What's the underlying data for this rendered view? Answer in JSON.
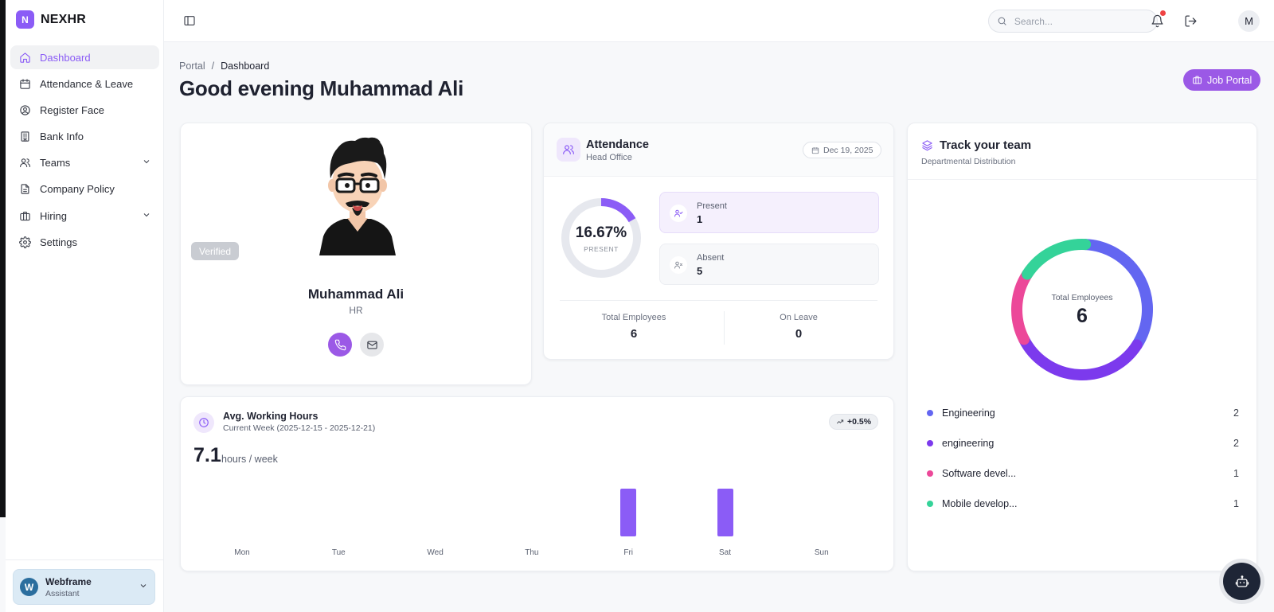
{
  "brand": {
    "logo_letter": "N",
    "name": "NEXHR"
  },
  "sidebar": {
    "items": [
      {
        "label": "Dashboard",
        "icon": "home-icon",
        "active": true
      },
      {
        "label": "Attendance & Leave",
        "icon": "calendar-icon"
      },
      {
        "label": "Register Face",
        "icon": "user-circle-icon"
      },
      {
        "label": "Bank Info",
        "icon": "building-icon"
      },
      {
        "label": "Teams",
        "icon": "users-icon",
        "expandable": true
      },
      {
        "label": "Company Policy",
        "icon": "document-icon"
      },
      {
        "label": "Hiring",
        "icon": "briefcase-icon",
        "expandable": true
      },
      {
        "label": "Settings",
        "icon": "gear-icon"
      }
    ],
    "user": {
      "initial": "W",
      "name": "Webframe",
      "role": "Assistant"
    }
  },
  "header": {
    "search_placeholder": "Search...",
    "avatar_initial": "M"
  },
  "page": {
    "breadcrumb": {
      "root": "Portal",
      "separator": "/",
      "current": "Dashboard"
    },
    "title": "Good evening Muhammad Ali",
    "job_portal_label": "Job Portal"
  },
  "profile": {
    "verified_label": "Verified",
    "name": "Muhammad Ali",
    "role": "HR"
  },
  "attendance": {
    "title": "Attendance",
    "location": "Head Office",
    "date": "Dec 19, 2025",
    "percent_label": "16.67%",
    "percent_value": 16.67,
    "ring_caption": "PRESENT",
    "present_label": "Present",
    "present_value": "1",
    "absent_label": "Absent",
    "absent_value": "5",
    "total_label": "Total Employees",
    "total_value": "6",
    "leave_label": "On Leave",
    "leave_value": "0"
  },
  "team": {
    "title": "Track your team",
    "subtitle": "Departmental Distribution",
    "center_label": "Total Employees",
    "center_value": "6",
    "departments": [
      {
        "name": "Engineering",
        "count": "2",
        "color": "#6366f1"
      },
      {
        "name": "engineering",
        "count": "2",
        "color": "#7c3aed"
      },
      {
        "name": "Software devel...",
        "count": "1",
        "color": "#ec4899"
      },
      {
        "name": "Mobile develop...",
        "count": "1",
        "color": "#34d399"
      }
    ]
  },
  "hours": {
    "title": "Avg. Working Hours",
    "subtitle": "Current Week (2025-12-15 - 2025-12-21)",
    "trend": "+0.5%",
    "value": "7.1",
    "unit": "hours / week"
  },
  "chart_data": {
    "type": "bar",
    "categories": [
      "Mon",
      "Tue",
      "Wed",
      "Thu",
      "Fri",
      "Sat",
      "Sun"
    ],
    "values": [
      0,
      0,
      0,
      0,
      1,
      1,
      0
    ],
    "color": "#8b5cf6"
  }
}
